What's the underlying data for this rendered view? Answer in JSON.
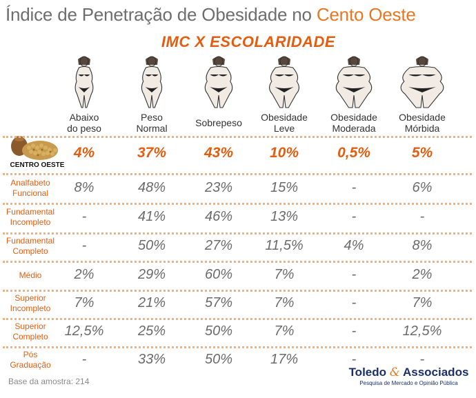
{
  "title": {
    "main": "Índice de Penetração de Obesidade no",
    "accent": "Cento Oeste"
  },
  "subtitle": "IMC X ESCOLARIDADE",
  "columns": [
    {
      "line1": "Abaixo",
      "line2": "do peso",
      "icon": "thin-figure-icon"
    },
    {
      "line1": "Peso",
      "line2": "Normal",
      "icon": "normal-figure-icon"
    },
    {
      "line1": "Sobrepeso",
      "line2": "",
      "icon": "overweight-figure-icon"
    },
    {
      "line1": "Obesidade",
      "line2": "Leve",
      "icon": "mild-obesity-figure-icon"
    },
    {
      "line1": "Obesidade",
      "line2": "Moderada",
      "icon": "moderate-obesity-figure-icon"
    },
    {
      "line1": "Obesidade",
      "line2": "Mórbida",
      "icon": "morbid-obesity-figure-icon"
    }
  ],
  "region": {
    "label": "CENTRO OESTE",
    "values": [
      "4%",
      "37%",
      "43%",
      "10%",
      "0,5%",
      "5%"
    ]
  },
  "rows": [
    {
      "line1": "Analfabeto",
      "line2": "Funcional",
      "values": [
        "8%",
        "48%",
        "23%",
        "15%",
        "-",
        "6%"
      ]
    },
    {
      "line1": "Fundamental",
      "line2": "Incompleto",
      "values": [
        "-",
        "41%",
        "46%",
        "13%",
        "-",
        "-"
      ]
    },
    {
      "line1": "Fundamental",
      "line2": "Completo",
      "values": [
        "-",
        "50%",
        "27%",
        "11,5%",
        "4%",
        "8%"
      ]
    },
    {
      "line1": "Médio",
      "line2": "",
      "values": [
        "2%",
        "29%",
        "60%",
        "7%",
        "-",
        "2%"
      ]
    },
    {
      "line1": "Superior",
      "line2": "Incompleto",
      "values": [
        "7%",
        "21%",
        "57%",
        "7%",
        "-",
        "7%"
      ]
    },
    {
      "line1": "Superior",
      "line2": "Completo",
      "values": [
        "12,5%",
        "25%",
        "50%",
        "7%",
        "-",
        "12,5%"
      ]
    },
    {
      "line1": "Pós",
      "line2": "Graduação",
      "values": [
        "-",
        "33%",
        "50%",
        "17%",
        "-",
        "-"
      ]
    }
  ],
  "footnote": "Base da amostra: 214",
  "brand": {
    "name_a": "Toledo",
    "amp": "&",
    "name_b": "Associados",
    "tagline": "Pesquisa de Mercado e Opinião Pública"
  },
  "colors": {
    "accent": "#e35d10",
    "dots": "#f2b27c",
    "value_gray": "#6b6b6b",
    "brand_navy": "#1a2f6b"
  }
}
